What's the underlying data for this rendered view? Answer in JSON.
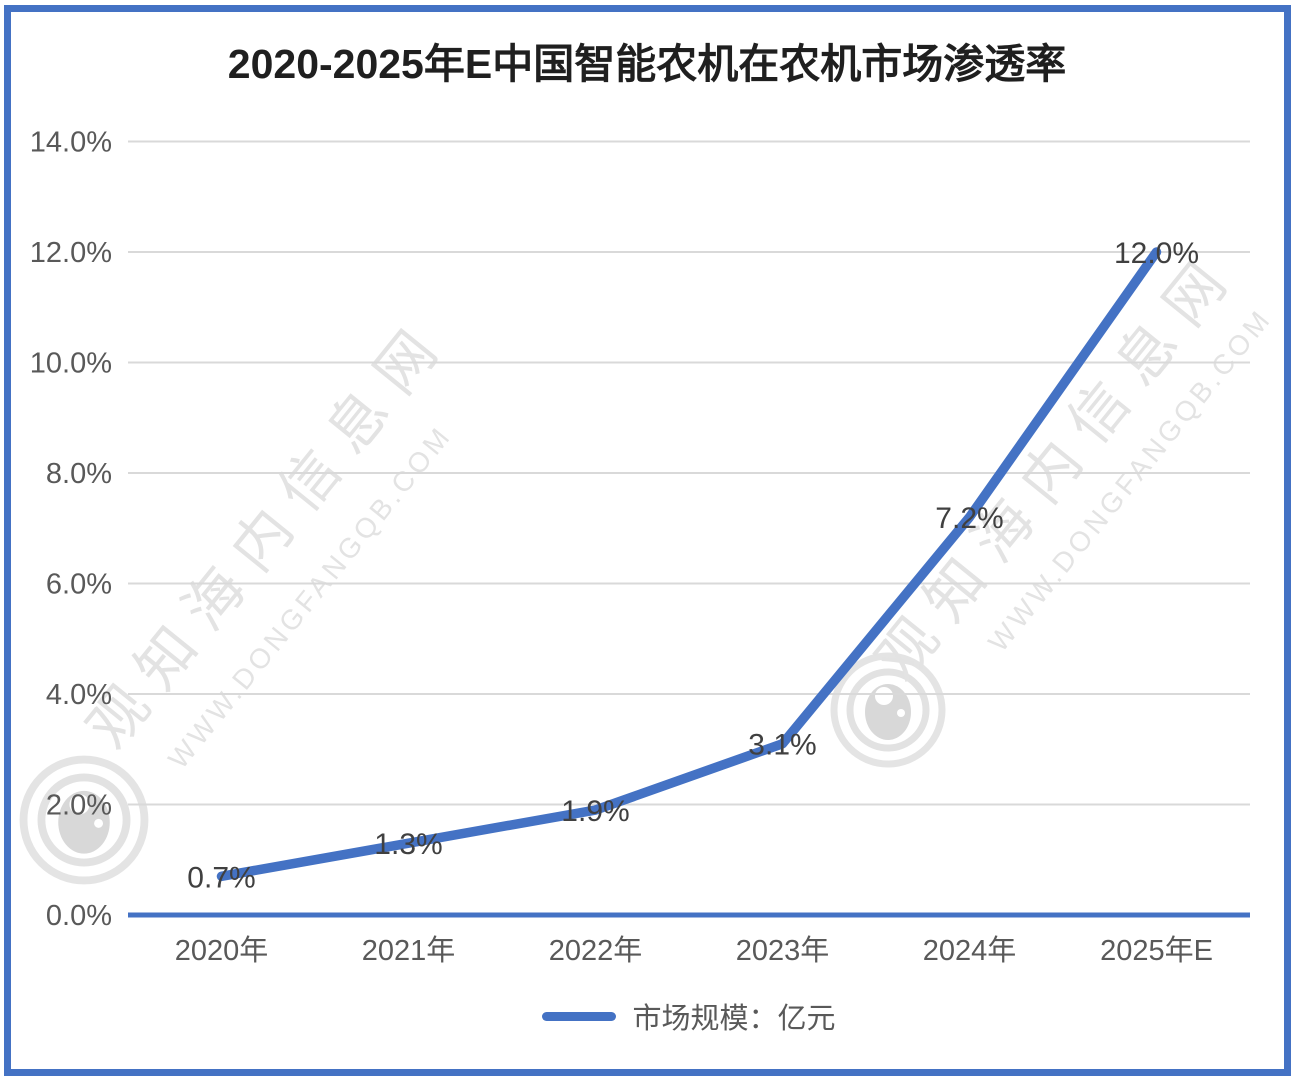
{
  "title": "2020-2025年E中国智能农机在农机市场渗透率",
  "legend": {
    "label": "市场规模：亿元"
  },
  "watermark": {
    "cn": "观知海内信息网",
    "en": "WWW.DONGFANGQB.COM"
  },
  "colors": {
    "accent": "#4472C4",
    "gridline": "#D9D9D9",
    "tick_text": "#595959",
    "data_label_text": "#404040",
    "title_text": "#1F1F1F",
    "watermark_gray": "#E3E3E3"
  },
  "chart_data": {
    "type": "line",
    "title": "2020-2025年E中国智能农机在农机市场渗透率",
    "categories": [
      "2020年",
      "2021年",
      "2022年",
      "2023年",
      "2024年",
      "2025年E"
    ],
    "series": [
      {
        "name": "市场规模：亿元",
        "values": [
          0.7,
          1.3,
          1.9,
          3.1,
          7.2,
          12.0
        ]
      }
    ],
    "data_labels": [
      "0.7%",
      "1.3%",
      "1.9%",
      "3.1%",
      "7.2%",
      "12.0%"
    ],
    "xlabel": "",
    "ylabel": "",
    "ylim": [
      0,
      14
    ],
    "ytick_step": 2,
    "ytick_labels": [
      "0.0%",
      "2.0%",
      "4.0%",
      "6.0%",
      "8.0%",
      "10.0%",
      "12.0%",
      "14.0%"
    ],
    "grid": true,
    "legend_position": "bottom"
  }
}
